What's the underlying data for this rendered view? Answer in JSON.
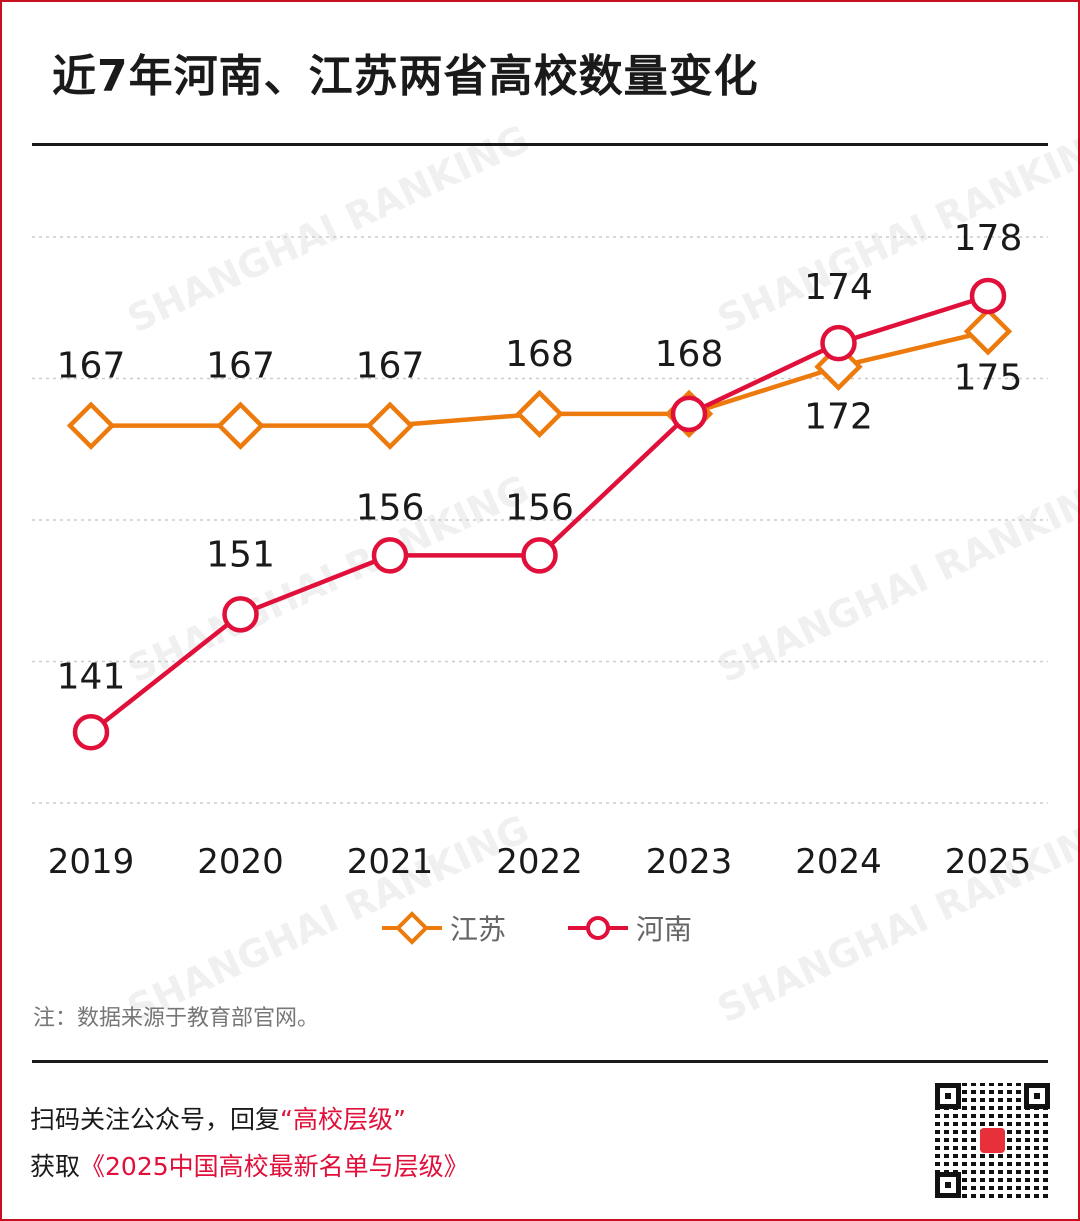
{
  "title": "近7年河南、江苏两省高校数量变化",
  "watermark": "SHANGHAI RANKING",
  "chart_data": {
    "type": "line",
    "title": "近7年河南、江苏两省高校数量变化",
    "categories": [
      "2019",
      "2020",
      "2021",
      "2022",
      "2023",
      "2024",
      "2025"
    ],
    "series": [
      {
        "name": "江苏",
        "values": [
          167,
          167,
          167,
          168,
          168,
          172,
          175
        ],
        "color": "#ec7a0c",
        "marker": "diamond"
      },
      {
        "name": "河南",
        "values": [
          141,
          151,
          156,
          156,
          168,
          174,
          178
        ],
        "color": "#e0103a",
        "marker": "circle"
      }
    ],
    "ylim": [
      135,
      183
    ],
    "grid": true,
    "y_tick_labels": false,
    "legend": "bottom-center"
  },
  "note": "注：数据来源于教育部官网。",
  "promo": {
    "line1_prefix": "扫码关注公众号，回复",
    "line1_highlight": "“高校层级”",
    "line2_prefix": "获取",
    "line2_highlight": "《2025中国高校最新名单与层级》"
  },
  "colors": {
    "border": "#c8101e",
    "accent": "#e0103a",
    "jiangsu": "#ec7a0c",
    "henan": "#e0103a"
  }
}
